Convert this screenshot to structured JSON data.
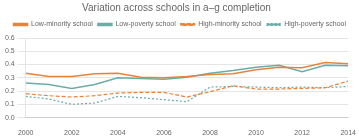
{
  "chart_data": {
    "type": "line",
    "title": "Variation across schools in a–g completion",
    "x": [
      2000,
      2001,
      2002,
      2003,
      2004,
      2005,
      2006,
      2007,
      2008,
      2009,
      2010,
      2011,
      2012,
      2013,
      2014
    ],
    "series": [
      {
        "name": "Low-minority school",
        "color": "#e8833a",
        "line_style": "solid",
        "values": [
          0.335,
          0.31,
          0.31,
          0.33,
          0.335,
          0.305,
          0.3,
          0.31,
          0.325,
          0.33,
          0.36,
          0.38,
          0.375,
          0.415,
          0.405
        ]
      },
      {
        "name": "Low-poverty school",
        "color": "#6aada8",
        "line_style": "solid",
        "values": [
          0.26,
          0.25,
          0.22,
          0.25,
          0.3,
          0.295,
          0.29,
          0.305,
          0.335,
          0.355,
          0.38,
          0.395,
          0.345,
          0.395,
          0.39
        ]
      },
      {
        "name": "High-minority school",
        "color": "#e8833a",
        "line_style": "dashed",
        "values": [
          0.18,
          0.165,
          0.155,
          0.165,
          0.185,
          0.19,
          0.19,
          0.155,
          0.195,
          0.24,
          0.215,
          0.215,
          0.22,
          0.225,
          0.275
        ]
      },
      {
        "name": "High-poverty school",
        "color": "#6aada8",
        "line_style": "dotted",
        "values": [
          0.16,
          0.14,
          0.1,
          0.11,
          0.16,
          0.15,
          0.135,
          0.12,
          0.23,
          0.235,
          0.23,
          0.225,
          0.23,
          0.225,
          0.235
        ]
      }
    ],
    "xlim": [
      2000,
      2014
    ],
    "xticks": [
      2000,
      2002,
      2004,
      2006,
      2008,
      2010,
      2012,
      2014
    ],
    "ylim": [
      0,
      0.6
    ],
    "yticks": [
      {
        "value": 0,
        "label": "0.0"
      },
      0.1,
      0.2,
      0.3,
      0.4,
      0.5,
      0.6
    ],
    "grid": true,
    "legend": "upper right"
  }
}
